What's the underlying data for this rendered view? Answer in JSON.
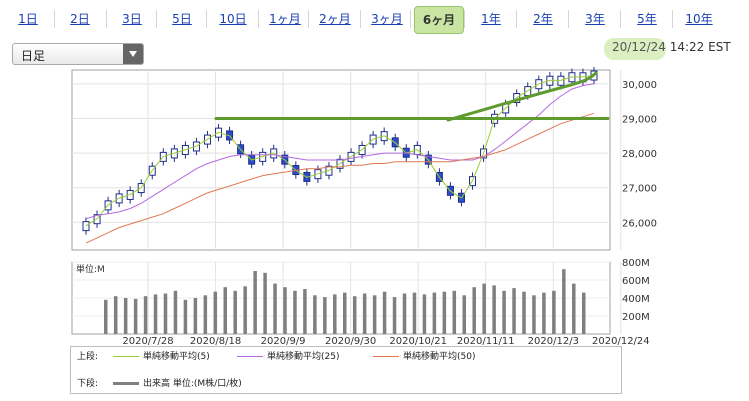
{
  "tabs": [
    {
      "label": "1日",
      "active": false
    },
    {
      "label": "2日",
      "active": false
    },
    {
      "label": "3日",
      "active": false
    },
    {
      "label": "5日",
      "active": false
    },
    {
      "label": "10日",
      "active": false
    },
    {
      "label": "1ヶ月",
      "active": false
    },
    {
      "label": "2ヶ月",
      "active": false
    },
    {
      "label": "3ヶ月",
      "active": false
    },
    {
      "label": "6ヶ月",
      "active": true
    },
    {
      "label": "1年",
      "active": false
    },
    {
      "label": "2年",
      "active": false
    },
    {
      "label": "3年",
      "active": false
    },
    {
      "label": "5年",
      "active": false
    },
    {
      "label": "10年",
      "active": false
    }
  ],
  "interval_select": {
    "value": "日足"
  },
  "timestamp": {
    "date": "20/12/24",
    "time": "14:22 EST"
  },
  "colors": {
    "ma5": "#9acd32",
    "ma25": "#b36adf",
    "ma50": "#e07a55",
    "volume": "#7f7f7f",
    "candle_up": "#ffffff",
    "candle_down": "#2c4cc9",
    "annotation": "#5f9a2f"
  },
  "chart_data": [
    {
      "type": "candlestick",
      "y_ticks": [
        "26,000",
        "27,000",
        "28,000",
        "29,000",
        "30,000"
      ],
      "ylim": [
        25200,
        30400
      ],
      "x_tick_labels": [
        "2020/7/28",
        "2020/8/18",
        "2020/9/9",
        "2020/9/30",
        "2020/10/21",
        "2020/11/11",
        "2020/12/3",
        "2020/12/24"
      ],
      "annotation_line_level": 29000,
      "series": [
        {
          "name": "単純移動平均(5)",
          "color": "#9acd32",
          "values": [
            25900,
            26100,
            26500,
            26700,
            26800,
            27000,
            27500,
            27900,
            28000,
            28100,
            28200,
            28400,
            28600,
            28500,
            28100,
            27800,
            27900,
            28000,
            27800,
            27500,
            27300,
            27400,
            27500,
            27700,
            27900,
            28100,
            28400,
            28500,
            28300,
            28000,
            28100,
            27800,
            27300,
            26900,
            26700,
            27200,
            28000,
            29000,
            29300,
            29600,
            29800,
            30000,
            30100,
            30100,
            30200,
            30200,
            30250
          ]
        },
        {
          "name": "単純移動平均(25)",
          "color": "#b36adf",
          "values": [
            26100,
            26200,
            26250,
            26300,
            26400,
            26550,
            26750,
            26950,
            27150,
            27350,
            27550,
            27700,
            27800,
            27900,
            27950,
            27950,
            27950,
            27950,
            27900,
            27850,
            27800,
            27800,
            27800,
            27800,
            27850,
            27900,
            27950,
            28000,
            28000,
            28000,
            27950,
            27900,
            27850,
            27800,
            27800,
            27800,
            27900,
            28100,
            28350,
            28600,
            28850,
            29100,
            29400,
            29650,
            29850,
            29950,
            30000
          ]
        },
        {
          "name": "単純移動平均(50)",
          "color": "#e07a55",
          "values": [
            25400,
            25550,
            25700,
            25850,
            25950,
            26050,
            26150,
            26250,
            26400,
            26550,
            26700,
            26850,
            26950,
            27050,
            27150,
            27250,
            27350,
            27400,
            27450,
            27500,
            27550,
            27550,
            27600,
            27600,
            27650,
            27650,
            27700,
            27700,
            27750,
            27750,
            27750,
            27750,
            27750,
            27750,
            27800,
            27850,
            27900,
            28000,
            28100,
            28250,
            28400,
            28550,
            28700,
            28850,
            28950,
            29050,
            29150
          ]
        }
      ],
      "volume_y_ticks": [
        "200M",
        "400M",
        "600M",
        "800M"
      ],
      "volume_ylim": [
        0,
        800
      ],
      "volume_unit_label": "単位:M",
      "volume": [
        380,
        420,
        400,
        390,
        420,
        440,
        450,
        480,
        380,
        400,
        430,
        470,
        520,
        480,
        530,
        700,
        680,
        560,
        520,
        480,
        500,
        430,
        410,
        440,
        460,
        420,
        450,
        430,
        470,
        410,
        450,
        460,
        440,
        460,
        470,
        480,
        430,
        520,
        560,
        540,
        480,
        510,
        470,
        430,
        460,
        480,
        720,
        560,
        460
      ]
    }
  ],
  "legend": {
    "upper_label": "上段:",
    "lower_label": "下段:",
    "items_upper": [
      "単純移動平均(5)",
      "単純移動平均(25)",
      "単純移動平均(50)"
    ],
    "items_lower": [
      "出来高 単位:(M株/口/枚)"
    ]
  }
}
